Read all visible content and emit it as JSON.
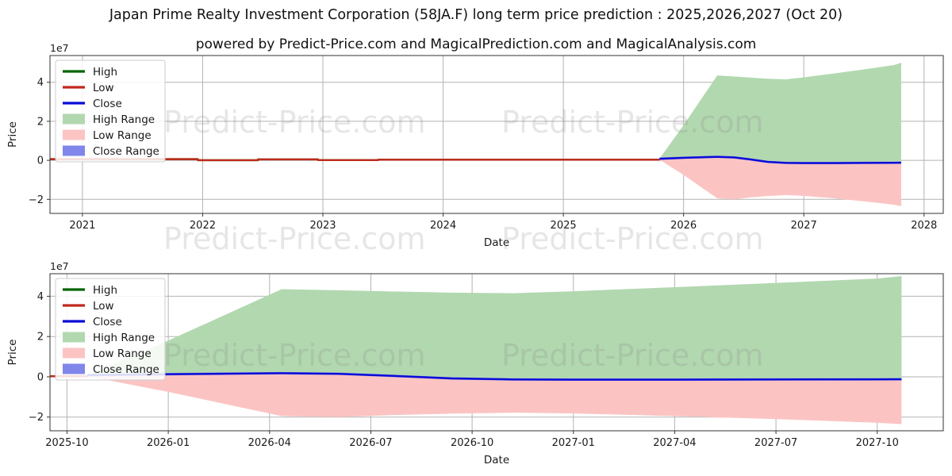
{
  "header": {
    "title": "Japan Prime Realty Investment Corporation (58JA.F) long term price prediction : 2025,2026,2027 (Oct 20)",
    "subtitle": "powered by Predict-Price.com and MagicalPrediction.com and MagicalAnalysis.com"
  },
  "watermark": {
    "text": "Predict-Price.com"
  },
  "colors": {
    "high": "#006400",
    "low": "#c0281c",
    "close": "#0b0bd6",
    "high_range": "#b2d8b0",
    "low_range": "#fbc4c2",
    "close_range": "#8086ea",
    "grid": "#b3b3b3",
    "spine": "#333333",
    "text": "#1a1a1a",
    "watermark": "rgba(128,128,128,0.2)"
  },
  "chart_data": [
    {
      "type": "area",
      "name": "long-term-history-and-prediction",
      "title": "",
      "xlabel": "Date",
      "ylabel": "Price",
      "y_offset_label": "1e7",
      "grid": true,
      "legend_position": "upper-left",
      "xlim": [
        2020.73,
        2028.16
      ],
      "ylim": [
        -27200000,
        53700000
      ],
      "x_ticks": [
        {
          "v": 2021,
          "label": "2021"
        },
        {
          "v": 2022,
          "label": "2022"
        },
        {
          "v": 2023,
          "label": "2023"
        },
        {
          "v": 2024,
          "label": "2024"
        },
        {
          "v": 2025,
          "label": "2025"
        },
        {
          "v": 2026,
          "label": "2026"
        },
        {
          "v": 2027,
          "label": "2027"
        },
        {
          "v": 2028,
          "label": "2028"
        }
      ],
      "y_ticks": [
        {
          "v": -20000000,
          "label": "−2"
        },
        {
          "v": 0,
          "label": "0"
        },
        {
          "v": 20000000,
          "label": "2"
        },
        {
          "v": 40000000,
          "label": "4"
        }
      ],
      "legend": [
        {
          "label": "High",
          "swatch": "line",
          "color": "high"
        },
        {
          "label": "Low",
          "swatch": "line",
          "color": "low"
        },
        {
          "label": "Close",
          "swatch": "line",
          "color": "close"
        },
        {
          "label": "High Range",
          "swatch": "patch",
          "color": "high_range"
        },
        {
          "label": "Low Range",
          "swatch": "patch",
          "color": "low_range"
        },
        {
          "label": "Close Range",
          "swatch": "patch",
          "color": "close_range"
        }
      ],
      "series": [
        {
          "name": "High Range",
          "kind": "band",
          "color": "high_range",
          "x": [
            2025.8,
            2026.0,
            2026.28,
            2026.42,
            2026.55,
            2026.7,
            2026.85,
            2027.0,
            2027.25,
            2027.5,
            2027.75,
            2027.81
          ],
          "upper": [
            900000,
            18000000,
            43500000,
            43000000,
            42400000,
            41800000,
            41500000,
            42500000,
            44500000,
            46600000,
            48800000,
            50000000
          ],
          "lower": [
            800000,
            1300000,
            1800000,
            1500000,
            500000,
            -800000,
            -1300000,
            -1400000,
            -1400000,
            -1300000,
            -1250000,
            -1200000
          ]
        },
        {
          "name": "Low Range",
          "kind": "band",
          "color": "low_range",
          "x": [
            2025.8,
            2026.0,
            2026.28,
            2026.42,
            2026.55,
            2026.7,
            2026.85,
            2027.0,
            2027.25,
            2027.5,
            2027.75,
            2027.81
          ],
          "upper": [
            800000,
            1300000,
            1800000,
            1500000,
            500000,
            -800000,
            -1300000,
            -1400000,
            -1400000,
            -1300000,
            -1250000,
            -1200000
          ],
          "lower": [
            300000,
            -7500000,
            -19500000,
            -20000000,
            -19000000,
            -18300000,
            -17800000,
            -18200000,
            -19500000,
            -21000000,
            -22800000,
            -23500000
          ]
        },
        {
          "name": "Close Range",
          "kind": "band",
          "color": "close_range",
          "x": [
            2025.8,
            2026.0,
            2026.28,
            2026.42,
            2026.55,
            2026.7,
            2026.85,
            2027.0,
            2027.25,
            2027.5,
            2027.75,
            2027.81
          ],
          "upper": [
            1400000,
            1900000,
            2400000,
            2100000,
            1100000,
            -200000,
            -700000,
            -800000,
            -800000,
            -700000,
            -650000,
            -600000
          ],
          "lower": [
            200000,
            700000,
            1200000,
            900000,
            -100000,
            -1400000,
            -1900000,
            -2000000,
            -2000000,
            -1900000,
            -1850000,
            -1800000
          ]
        },
        {
          "name": "High",
          "kind": "line",
          "color": "high",
          "x": [
            2020.73,
            2021.96,
            2021.96,
            2022.46,
            2022.46,
            2022.96,
            2022.96,
            2023.46,
            2023.46,
            2025.8
          ],
          "y": [
            600000,
            600000,
            50000,
            50000,
            450000,
            450000,
            120000,
            120000,
            300000,
            300000
          ]
        },
        {
          "name": "Low",
          "kind": "line",
          "color": "low",
          "x": [
            2020.73,
            2021.96,
            2021.96,
            2022.46,
            2022.46,
            2022.96,
            2022.96,
            2023.46,
            2023.46,
            2025.8
          ],
          "y": [
            600000,
            600000,
            50000,
            50000,
            450000,
            450000,
            120000,
            120000,
            300000,
            300000
          ]
        },
        {
          "name": "Close",
          "kind": "line",
          "color": "close",
          "x": [
            2025.8,
            2026.0,
            2026.28,
            2026.42,
            2026.55,
            2026.7,
            2026.85,
            2027.0,
            2027.25,
            2027.5,
            2027.75,
            2027.81
          ],
          "y": [
            800000,
            1300000,
            1800000,
            1500000,
            500000,
            -800000,
            -1300000,
            -1400000,
            -1400000,
            -1300000,
            -1250000,
            -1200000
          ]
        }
      ]
    },
    {
      "type": "area",
      "name": "prediction-zoom",
      "title": "",
      "xlabel": "Date",
      "ylabel": "Price",
      "y_offset_label": "1e7",
      "grid": true,
      "legend_position": "upper-left",
      "xlim": [
        2025.708,
        2027.913
      ],
      "ylim": [
        -26800000,
        51200000
      ],
      "x_ticks": [
        {
          "v": 2025.75,
          "label": "2025-10"
        },
        {
          "v": 2026.0,
          "label": "2026-01"
        },
        {
          "v": 2026.25,
          "label": "2026-04"
        },
        {
          "v": 2026.5,
          "label": "2026-07"
        },
        {
          "v": 2026.75,
          "label": "2026-10"
        },
        {
          "v": 2027.0,
          "label": "2027-01"
        },
        {
          "v": 2027.25,
          "label": "2027-04"
        },
        {
          "v": 2027.5,
          "label": "2027-07"
        },
        {
          "v": 2027.75,
          "label": "2027-10"
        }
      ],
      "y_ticks": [
        {
          "v": -20000000,
          "label": "−2"
        },
        {
          "v": 0,
          "label": "0"
        },
        {
          "v": 20000000,
          "label": "2"
        },
        {
          "v": 40000000,
          "label": "4"
        }
      ],
      "legend": [
        {
          "label": "High",
          "swatch": "line",
          "color": "high"
        },
        {
          "label": "Low",
          "swatch": "line",
          "color": "low"
        },
        {
          "label": "Close",
          "swatch": "line",
          "color": "close"
        },
        {
          "label": "High Range",
          "swatch": "patch",
          "color": "high_range"
        },
        {
          "label": "Low Range",
          "swatch": "patch",
          "color": "low_range"
        },
        {
          "label": "Close Range",
          "swatch": "patch",
          "color": "close_range"
        }
      ],
      "series": [
        {
          "name": "High Range",
          "kind": "band",
          "color": "high_range",
          "x": [
            2025.8,
            2026.0,
            2026.28,
            2026.42,
            2026.55,
            2026.7,
            2026.85,
            2027.0,
            2027.25,
            2027.5,
            2027.75,
            2027.81
          ],
          "upper": [
            900000,
            18000000,
            43500000,
            43000000,
            42400000,
            41800000,
            41500000,
            42500000,
            44500000,
            46600000,
            48800000,
            50000000
          ],
          "lower": [
            800000,
            1300000,
            1800000,
            1500000,
            500000,
            -800000,
            -1300000,
            -1400000,
            -1400000,
            -1300000,
            -1250000,
            -1200000
          ]
        },
        {
          "name": "Low Range",
          "kind": "band",
          "color": "low_range",
          "x": [
            2025.8,
            2026.0,
            2026.28,
            2026.42,
            2026.55,
            2026.7,
            2026.85,
            2027.0,
            2027.25,
            2027.5,
            2027.75,
            2027.81
          ],
          "upper": [
            800000,
            1300000,
            1800000,
            1500000,
            500000,
            -800000,
            -1300000,
            -1400000,
            -1400000,
            -1300000,
            -1250000,
            -1200000
          ],
          "lower": [
            300000,
            -7500000,
            -19500000,
            -20000000,
            -19000000,
            -18300000,
            -17800000,
            -18200000,
            -19500000,
            -21000000,
            -22800000,
            -23500000
          ]
        },
        {
          "name": "Close Range",
          "kind": "band",
          "color": "close_range",
          "x": [
            2025.8,
            2026.0,
            2026.28,
            2026.42,
            2026.55,
            2026.7,
            2026.85,
            2027.0,
            2027.25,
            2027.5,
            2027.75,
            2027.81
          ],
          "upper": [
            1400000,
            1900000,
            2400000,
            2100000,
            1100000,
            -200000,
            -700000,
            -800000,
            -800000,
            -700000,
            -650000,
            -600000
          ],
          "lower": [
            200000,
            700000,
            1200000,
            900000,
            -100000,
            -1400000,
            -1900000,
            -2000000,
            -2000000,
            -1900000,
            -1850000,
            -1800000
          ]
        },
        {
          "name": "High",
          "kind": "line",
          "color": "high",
          "x": [
            2025.708,
            2025.8
          ],
          "y": [
            300000,
            300000
          ]
        },
        {
          "name": "Low",
          "kind": "line",
          "color": "low",
          "x": [
            2025.708,
            2025.8
          ],
          "y": [
            300000,
            300000
          ]
        },
        {
          "name": "Close",
          "kind": "line",
          "color": "close",
          "x": [
            2025.8,
            2026.0,
            2026.28,
            2026.42,
            2026.55,
            2026.7,
            2026.85,
            2027.0,
            2027.25,
            2027.5,
            2027.75,
            2027.81
          ],
          "y": [
            800000,
            1300000,
            1800000,
            1500000,
            500000,
            -800000,
            -1300000,
            -1400000,
            -1400000,
            -1300000,
            -1250000,
            -1200000
          ]
        }
      ]
    }
  ]
}
